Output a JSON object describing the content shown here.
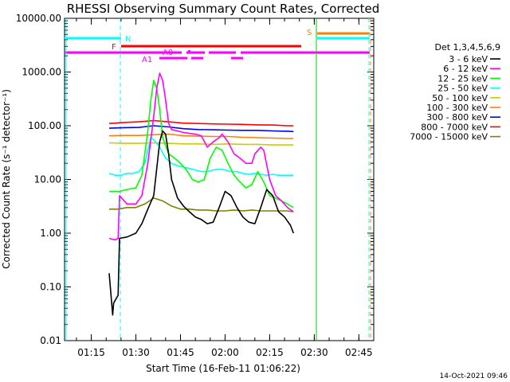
{
  "chart_data": {
    "type": "line",
    "title": "RHESSI Observing Summary Count Rates, Corrected",
    "xlabel": "Start Time (16-Feb-11 01:06:22)",
    "ylabel": "Corrected Count Rate (s⁻¹ detector⁻¹)",
    "yscale": "log",
    "ylim": [
      0.01,
      10000
    ],
    "xlim_minutes_after_01_06": [
      0,
      104
    ],
    "y_ticks": [
      "10000.00",
      "1000.00",
      "100.00",
      "10.00",
      "1.00",
      "0.10",
      "0.01"
    ],
    "x_ticks": [
      "01:15",
      "01:30",
      "01:45",
      "02:00",
      "02:15",
      "02:30",
      "02:45"
    ],
    "footer_date": "14-Oct-2021 09:46",
    "legend_title": "Det 1,3,4,5,6,9",
    "grid": false,
    "series": [
      {
        "name": "3 - 6 keV",
        "color": "#000000",
        "points": [
          [
            15.0,
            0.18
          ],
          [
            16.2,
            0.03
          ],
          [
            16.5,
            0.05
          ],
          [
            18,
            0.07
          ],
          [
            18.5,
            0.8
          ],
          [
            21,
            0.85
          ],
          [
            24,
            1.0
          ],
          [
            26,
            1.5
          ],
          [
            28,
            2.8
          ],
          [
            30,
            5
          ],
          [
            32,
            50
          ],
          [
            33,
            80
          ],
          [
            34,
            70
          ],
          [
            35,
            30
          ],
          [
            36,
            10
          ],
          [
            38,
            4.5
          ],
          [
            40,
            3.2
          ],
          [
            42,
            2.5
          ],
          [
            44,
            2.0
          ],
          [
            46,
            1.8
          ],
          [
            48,
            1.5
          ],
          [
            50,
            1.6
          ],
          [
            52,
            3.0
          ],
          [
            54,
            6
          ],
          [
            56,
            5
          ],
          [
            58,
            3
          ],
          [
            60,
            2
          ],
          [
            62,
            1.6
          ],
          [
            64,
            1.5
          ],
          [
            66,
            3
          ],
          [
            68,
            6.5
          ],
          [
            70,
            5
          ],
          [
            72,
            2.5
          ],
          [
            74,
            2
          ],
          [
            76,
            1.4
          ],
          [
            77,
            1
          ]
        ]
      },
      {
        "name": "6 - 12 keV",
        "color": "#ff00ff",
        "points": [
          [
            15.0,
            0.8
          ],
          [
            17,
            0.75
          ],
          [
            18,
            0.8
          ],
          [
            18.5,
            5
          ],
          [
            21,
            3.5
          ],
          [
            24,
            3.5
          ],
          [
            26,
            5
          ],
          [
            28,
            20
          ],
          [
            30,
            150
          ],
          [
            31,
            500
          ],
          [
            32,
            950
          ],
          [
            33,
            700
          ],
          [
            34,
            300
          ],
          [
            35,
            110
          ],
          [
            36,
            85
          ],
          [
            38,
            80
          ],
          [
            40,
            75
          ],
          [
            42,
            72
          ],
          [
            44,
            70
          ],
          [
            46,
            65
          ],
          [
            48,
            40
          ],
          [
            50,
            50
          ],
          [
            52,
            60
          ],
          [
            53,
            70
          ],
          [
            55,
            50
          ],
          [
            57,
            30
          ],
          [
            59,
            25
          ],
          [
            61,
            20
          ],
          [
            63,
            20
          ],
          [
            64,
            30
          ],
          [
            66,
            40
          ],
          [
            67,
            35
          ],
          [
            69,
            10
          ],
          [
            71,
            5
          ],
          [
            73,
            4
          ],
          [
            75,
            3
          ],
          [
            77,
            2.5
          ]
        ]
      },
      {
        "name": "12 - 25 keV",
        "color": "#00ff00",
        "points": [
          [
            15.0,
            6
          ],
          [
            17,
            6
          ],
          [
            18.5,
            6
          ],
          [
            21,
            6.5
          ],
          [
            24,
            7
          ],
          [
            26,
            12
          ],
          [
            28,
            80
          ],
          [
            29,
            300
          ],
          [
            30,
            700
          ],
          [
            31,
            500
          ],
          [
            32,
            200
          ],
          [
            33,
            60
          ],
          [
            35,
            30
          ],
          [
            37,
            25
          ],
          [
            39,
            20
          ],
          [
            41,
            15
          ],
          [
            43,
            10
          ],
          [
            45,
            9
          ],
          [
            47,
            10
          ],
          [
            49,
            25
          ],
          [
            51,
            40
          ],
          [
            53,
            35
          ],
          [
            55,
            20
          ],
          [
            57,
            12
          ],
          [
            59,
            9
          ],
          [
            61,
            7
          ],
          [
            63,
            8
          ],
          [
            65,
            14
          ],
          [
            67,
            9
          ],
          [
            69,
            5
          ],
          [
            71,
            4.5
          ],
          [
            73,
            4
          ],
          [
            75,
            3.5
          ],
          [
            77,
            3
          ]
        ]
      },
      {
        "name": "25 - 50 keV",
        "color": "#00ffff",
        "points": [
          [
            15.0,
            13
          ],
          [
            17,
            12
          ],
          [
            19,
            12
          ],
          [
            21,
            13
          ],
          [
            23,
            13
          ],
          [
            25,
            14
          ],
          [
            27,
            20
          ],
          [
            29,
            60
          ],
          [
            30,
            55
          ],
          [
            32,
            40
          ],
          [
            34,
            25
          ],
          [
            36,
            20
          ],
          [
            38,
            18
          ],
          [
            40,
            17
          ],
          [
            42,
            16
          ],
          [
            44,
            15
          ],
          [
            46,
            14
          ],
          [
            48,
            14
          ],
          [
            50,
            15
          ],
          [
            52,
            15.5
          ],
          [
            54,
            15
          ],
          [
            56,
            14
          ],
          [
            58,
            14
          ],
          [
            60,
            13
          ],
          [
            62,
            12.5
          ],
          [
            64,
            13
          ],
          [
            66,
            12.5
          ],
          [
            68,
            12
          ],
          [
            70,
            12.5
          ],
          [
            72,
            12
          ],
          [
            74,
            12
          ],
          [
            76,
            12
          ],
          [
            77,
            12
          ]
        ]
      },
      {
        "name": "50 - 100 keV",
        "color": "#cccc00",
        "points": [
          [
            15.0,
            48
          ],
          [
            20,
            47
          ],
          [
            25,
            47
          ],
          [
            30,
            48
          ],
          [
            35,
            47
          ],
          [
            40,
            46
          ],
          [
            45,
            46
          ],
          [
            50,
            45
          ],
          [
            55,
            46
          ],
          [
            60,
            45
          ],
          [
            65,
            45
          ],
          [
            70,
            44
          ],
          [
            75,
            44
          ],
          [
            77,
            44
          ]
        ]
      },
      {
        "name": "100 - 300 keV",
        "color": "#ff8000",
        "points": [
          [
            15.0,
            65
          ],
          [
            20,
            66
          ],
          [
            25,
            66
          ],
          [
            30,
            68
          ],
          [
            35,
            70
          ],
          [
            40,
            65
          ],
          [
            45,
            64
          ],
          [
            50,
            63
          ],
          [
            55,
            63
          ],
          [
            60,
            61
          ],
          [
            65,
            60
          ],
          [
            70,
            59
          ],
          [
            75,
            58
          ],
          [
            77,
            58
          ]
        ]
      },
      {
        "name": "300 - 800 keV",
        "color": "#0000ff",
        "points": [
          [
            15.0,
            90
          ],
          [
            20,
            92
          ],
          [
            25,
            93
          ],
          [
            30,
            100
          ],
          [
            35,
            95
          ],
          [
            40,
            88
          ],
          [
            45,
            85
          ],
          [
            50,
            84
          ],
          [
            55,
            83
          ],
          [
            60,
            82
          ],
          [
            65,
            82
          ],
          [
            70,
            80
          ],
          [
            75,
            79
          ],
          [
            77,
            78
          ]
        ]
      },
      {
        "name": "800 - 7000 keV",
        "color": "#ff0000",
        "points": [
          [
            15.0,
            110
          ],
          [
            20,
            115
          ],
          [
            25,
            118
          ],
          [
            30,
            125
          ],
          [
            35,
            118
          ],
          [
            40,
            112
          ],
          [
            45,
            110
          ],
          [
            50,
            108
          ],
          [
            55,
            107
          ],
          [
            60,
            106
          ],
          [
            65,
            104
          ],
          [
            70,
            103
          ],
          [
            75,
            100
          ],
          [
            77,
            100
          ]
        ]
      },
      {
        "name": "7000 - 15000 keV",
        "color": "#808000",
        "points": [
          [
            15.0,
            2.8
          ],
          [
            18,
            2.8
          ],
          [
            21,
            3
          ],
          [
            24,
            3
          ],
          [
            27,
            3.5
          ],
          [
            30,
            4.5
          ],
          [
            33,
            4
          ],
          [
            36,
            3.2
          ],
          [
            39,
            2.8
          ],
          [
            42,
            2.8
          ],
          [
            45,
            2.7
          ],
          [
            48,
            2.7
          ],
          [
            51,
            2.6
          ],
          [
            54,
            2.6
          ],
          [
            57,
            2.7
          ],
          [
            60,
            2.6
          ],
          [
            63,
            2.7
          ],
          [
            66,
            2.6
          ],
          [
            69,
            2.6
          ],
          [
            72,
            2.6
          ],
          [
            75,
            2.6
          ],
          [
            77,
            2.5
          ]
        ]
      }
    ],
    "annotations": {
      "labels": [
        {
          "text": "N",
          "color": "#00ffff"
        },
        {
          "text": "F",
          "color": "#ff0000"
        },
        {
          "text": "A0",
          "color": "#ff00ff"
        },
        {
          "text": "A1",
          "color": "#ff00ff"
        },
        {
          "text": "S",
          "color": "#ff8000"
        }
      ]
    }
  }
}
